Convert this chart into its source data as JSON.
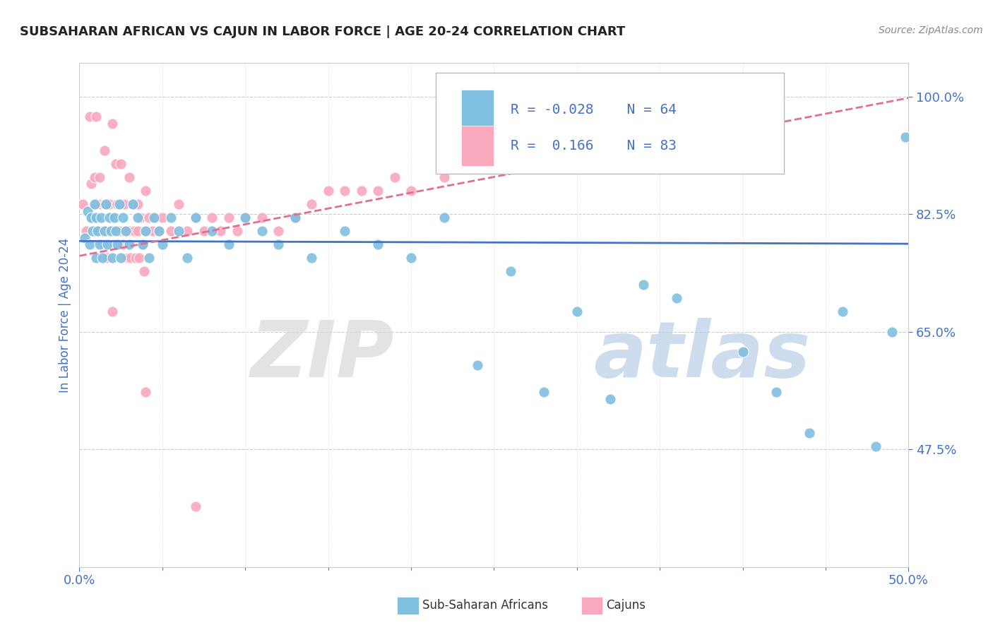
{
  "title": "SUBSAHARAN AFRICAN VS CAJUN IN LABOR FORCE | AGE 20-24 CORRELATION CHART",
  "source": "Source: ZipAtlas.com",
  "ylabel": "In Labor Force | Age 20-24",
  "xlim": [
    0.0,
    0.5
  ],
  "ylim": [
    0.3,
    1.05
  ],
  "yticks": [
    0.475,
    0.65,
    0.825,
    1.0
  ],
  "ytick_labels": [
    "47.5%",
    "65.0%",
    "82.5%",
    "100.0%"
  ],
  "xtick_labels": [
    "0.0%",
    "50.0%"
  ],
  "legend_blue_r": "-0.028",
  "legend_blue_n": "64",
  "legend_pink_r": "0.166",
  "legend_pink_n": "83",
  "blue_color": "#7fbfdf",
  "pink_color": "#f9a8be",
  "blue_line_color": "#4472c4",
  "pink_line_color": "#e07090",
  "title_color": "#222222",
  "axis_label_color": "#4472c4",
  "tick_color": "#4472c4",
  "grid_color": "#cccccc",
  "source_color": "#888888",
  "watermark_zip_color": "#d8d8d8",
  "watermark_atlas_color": "#b8cfe8",
  "blue_scatter_x": [
    0.003,
    0.005,
    0.006,
    0.007,
    0.008,
    0.009,
    0.01,
    0.01,
    0.011,
    0.012,
    0.013,
    0.014,
    0.015,
    0.016,
    0.017,
    0.018,
    0.019,
    0.02,
    0.021,
    0.022,
    0.023,
    0.024,
    0.025,
    0.026,
    0.028,
    0.03,
    0.032,
    0.035,
    0.038,
    0.04,
    0.042,
    0.045,
    0.048,
    0.05,
    0.055,
    0.06,
    0.065,
    0.07,
    0.08,
    0.09,
    0.1,
    0.11,
    0.12,
    0.13,
    0.14,
    0.16,
    0.18,
    0.2,
    0.22,
    0.24,
    0.26,
    0.28,
    0.3,
    0.32,
    0.34,
    0.36,
    0.38,
    0.4,
    0.42,
    0.44,
    0.46,
    0.48,
    0.49,
    0.498
  ],
  "blue_scatter_y": [
    0.79,
    0.83,
    0.78,
    0.82,
    0.8,
    0.84,
    0.76,
    0.82,
    0.8,
    0.78,
    0.82,
    0.76,
    0.8,
    0.84,
    0.78,
    0.82,
    0.8,
    0.76,
    0.82,
    0.8,
    0.78,
    0.84,
    0.76,
    0.82,
    0.8,
    0.78,
    0.84,
    0.82,
    0.78,
    0.8,
    0.76,
    0.82,
    0.8,
    0.78,
    0.82,
    0.8,
    0.76,
    0.82,
    0.8,
    0.78,
    0.82,
    0.8,
    0.78,
    0.82,
    0.76,
    0.8,
    0.78,
    0.76,
    0.82,
    0.6,
    0.74,
    0.56,
    0.68,
    0.55,
    0.72,
    0.7,
    0.9,
    0.62,
    0.56,
    0.5,
    0.68,
    0.48,
    0.65,
    0.94
  ],
  "pink_scatter_x": [
    0.002,
    0.004,
    0.006,
    0.007,
    0.008,
    0.009,
    0.01,
    0.01,
    0.011,
    0.012,
    0.013,
    0.014,
    0.015,
    0.015,
    0.016,
    0.017,
    0.018,
    0.019,
    0.02,
    0.02,
    0.021,
    0.022,
    0.023,
    0.024,
    0.025,
    0.025,
    0.026,
    0.027,
    0.028,
    0.029,
    0.03,
    0.03,
    0.031,
    0.032,
    0.033,
    0.034,
    0.035,
    0.035,
    0.036,
    0.037,
    0.038,
    0.039,
    0.04,
    0.04,
    0.042,
    0.044,
    0.046,
    0.048,
    0.05,
    0.055,
    0.06,
    0.065,
    0.07,
    0.075,
    0.08,
    0.085,
    0.09,
    0.095,
    0.1,
    0.11,
    0.12,
    0.13,
    0.14,
    0.15,
    0.16,
    0.17,
    0.18,
    0.19,
    0.2,
    0.22,
    0.24,
    0.26,
    0.28,
    0.3,
    0.32,
    0.34,
    0.36,
    0.38,
    0.4,
    0.42,
    0.02,
    0.04,
    0.07
  ],
  "pink_scatter_y": [
    0.84,
    0.8,
    0.97,
    0.87,
    0.82,
    0.88,
    0.97,
    0.84,
    0.8,
    0.88,
    0.84,
    0.78,
    0.92,
    0.84,
    0.8,
    0.76,
    0.84,
    0.8,
    0.96,
    0.82,
    0.78,
    0.9,
    0.84,
    0.8,
    0.9,
    0.84,
    0.78,
    0.84,
    0.8,
    0.76,
    0.88,
    0.8,
    0.76,
    0.84,
    0.8,
    0.76,
    0.84,
    0.8,
    0.76,
    0.82,
    0.78,
    0.74,
    0.86,
    0.8,
    0.82,
    0.8,
    0.82,
    0.8,
    0.82,
    0.8,
    0.84,
    0.8,
    0.82,
    0.8,
    0.82,
    0.8,
    0.82,
    0.8,
    0.82,
    0.82,
    0.8,
    0.82,
    0.84,
    0.86,
    0.86,
    0.86,
    0.86,
    0.88,
    0.86,
    0.88,
    0.9,
    0.9,
    0.92,
    0.92,
    0.94,
    0.96,
    0.96,
    0.98,
    0.98,
    1.0,
    0.68,
    0.56,
    0.39
  ]
}
